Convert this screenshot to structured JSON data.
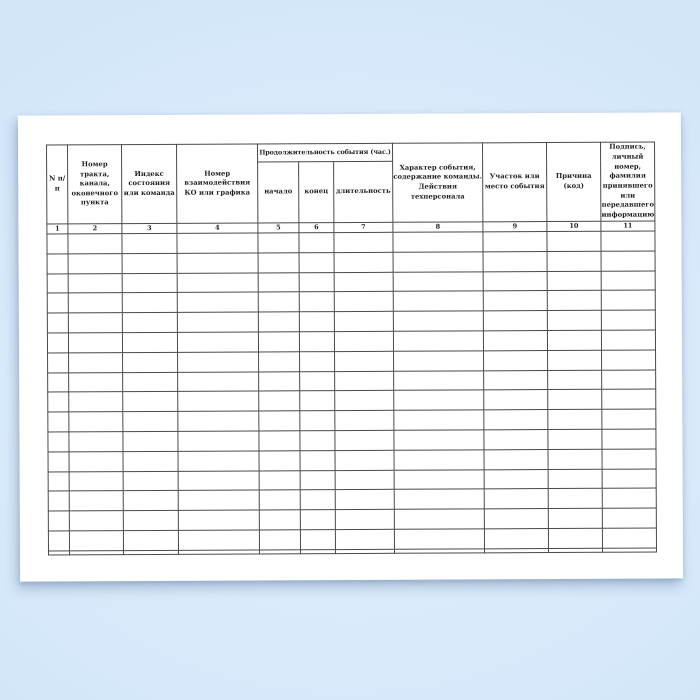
{
  "table": {
    "group_header": "Продолжительность события (час.)",
    "columns": [
      {
        "num": "1",
        "label": "N п/п"
      },
      {
        "num": "2",
        "label": "Номер тракта, канала, оконечного пункта"
      },
      {
        "num": "3",
        "label": "Индекс состояния или команда"
      },
      {
        "num": "4",
        "label": "Номер взаимодействия КО или графика"
      },
      {
        "num": "5",
        "label": "начало"
      },
      {
        "num": "6",
        "label": "конец"
      },
      {
        "num": "7",
        "label": "длительность"
      },
      {
        "num": "8",
        "label": "Характер события, содержание команды. Действия техперсонала"
      },
      {
        "num": "9",
        "label": "Участок или место события"
      },
      {
        "num": "10",
        "label": "Причина (код)"
      },
      {
        "num": "11",
        "label": "Подпись, личный номер, фамилия принявшего или передавшего информацию"
      }
    ],
    "empty_data_rows": 16
  },
  "colors": {
    "page": "#ffffff",
    "table_border": "#4a4a4a",
    "text": "#1f1f1f",
    "background_center": "#e3f0fc",
    "background_edge": "#c3d9f2"
  }
}
